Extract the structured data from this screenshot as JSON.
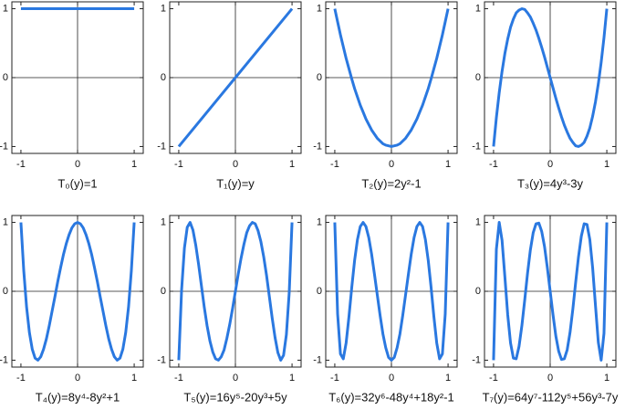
{
  "chart_data": [
    {
      "type": "line",
      "xlabel": "T₀(y)=1",
      "x": [
        -1,
        1
      ],
      "values": [
        1,
        1
      ],
      "color": "#2a78e0",
      "xlim": [
        -1.16,
        1.16
      ],
      "ylim": [
        -1.1,
        1.1
      ],
      "xticks": [
        -1,
        0,
        1
      ],
      "yticks": [
        -1,
        0,
        1
      ],
      "zeroline": true
    },
    {
      "type": "line",
      "xlabel": "T₁(y)=y",
      "x": [
        -1,
        1
      ],
      "values": [
        -1,
        1
      ],
      "color": "#2a78e0",
      "xlim": [
        -1.16,
        1.16
      ],
      "ylim": [
        -1.1,
        1.1
      ],
      "xticks": [
        -1,
        0,
        1
      ],
      "yticks": [
        -1,
        0,
        1
      ],
      "zeroline": true
    },
    {
      "type": "line",
      "xlabel": "T₂(y)=2y²-1",
      "x": [
        -1,
        -0.95,
        -0.9,
        -0.85,
        -0.8,
        -0.75,
        -0.7,
        -0.65,
        -0.6,
        -0.55,
        -0.5,
        -0.45,
        -0.4,
        -0.35,
        -0.3,
        -0.25,
        -0.2,
        -0.15,
        -0.1,
        -0.05,
        0,
        0.05,
        0.1,
        0.15,
        0.2,
        0.25,
        0.3,
        0.35,
        0.4,
        0.45,
        0.5,
        0.55,
        0.6,
        0.65,
        0.7,
        0.75,
        0.8,
        0.85,
        0.9,
        0.95,
        1
      ],
      "values": [
        1,
        0.81,
        0.62,
        0.45,
        0.28,
        0.13,
        -0.02,
        -0.16,
        -0.28,
        -0.4,
        -0.5,
        -0.6,
        -0.68,
        -0.76,
        -0.82,
        -0.88,
        -0.92,
        -0.96,
        -0.98,
        -0.99,
        -1,
        -0.99,
        -0.98,
        -0.96,
        -0.92,
        -0.88,
        -0.82,
        -0.76,
        -0.68,
        -0.6,
        -0.5,
        -0.4,
        -0.28,
        -0.16,
        -0.02,
        0.13,
        0.28,
        0.45,
        0.62,
        0.81,
        1
      ],
      "color": "#2a78e0",
      "xlim": [
        -1.16,
        1.16
      ],
      "ylim": [
        -1.1,
        1.1
      ],
      "xticks": [
        -1,
        0,
        1
      ],
      "yticks": [
        -1,
        0,
        1
      ],
      "zeroline": true
    },
    {
      "type": "line",
      "xlabel": "T₃(y)=4y³-3y",
      "x": [
        -1,
        -0.95,
        -0.9,
        -0.85,
        -0.8,
        -0.75,
        -0.7,
        -0.65,
        -0.6,
        -0.55,
        -0.5,
        -0.45,
        -0.4,
        -0.35,
        -0.3,
        -0.25,
        -0.2,
        -0.15,
        -0.1,
        -0.05,
        0,
        0.05,
        0.1,
        0.15,
        0.2,
        0.25,
        0.3,
        0.35,
        0.4,
        0.45,
        0.5,
        0.55,
        0.6,
        0.65,
        0.7,
        0.75,
        0.8,
        0.85,
        0.9,
        0.95,
        1
      ],
      "values": [
        -1,
        -0.58,
        -0.22,
        0.09,
        0.35,
        0.56,
        0.73,
        0.85,
        0.94,
        0.98,
        1,
        0.99,
        0.94,
        0.88,
        0.79,
        0.69,
        0.57,
        0.44,
        0.3,
        0.15,
        0,
        -0.15,
        -0.3,
        -0.44,
        -0.57,
        -0.69,
        -0.79,
        -0.88,
        -0.94,
        -0.99,
        -1,
        -0.98,
        -0.94,
        -0.85,
        -0.73,
        -0.56,
        -0.35,
        -0.09,
        0.22,
        0.58,
        1
      ],
      "color": "#2a78e0",
      "xlim": [
        -1.16,
        1.16
      ],
      "ylim": [
        -1.1,
        1.1
      ],
      "xticks": [
        -1,
        0,
        1
      ],
      "yticks": [
        -1,
        0,
        1
      ],
      "zeroline": true
    },
    {
      "type": "line",
      "xlabel": "T₄(y)=8y⁴-8y²+1",
      "x": [
        -1,
        -0.95,
        -0.9,
        -0.85,
        -0.8,
        -0.75,
        -0.7,
        -0.65,
        -0.6,
        -0.55,
        -0.5,
        -0.45,
        -0.4,
        -0.35,
        -0.3,
        -0.25,
        -0.2,
        -0.15,
        -0.1,
        -0.05,
        0,
        0.05,
        0.1,
        0.15,
        0.2,
        0.25,
        0.3,
        0.35,
        0.4,
        0.45,
        0.5,
        0.55,
        0.6,
        0.65,
        0.7,
        0.75,
        0.8,
        0.85,
        0.9,
        0.95,
        1
      ],
      "values": [
        1,
        0.3,
        -0.23,
        -0.6,
        -0.84,
        -0.97,
        -1,
        -0.95,
        -0.84,
        -0.69,
        -0.5,
        -0.29,
        -0.08,
        0.14,
        0.34,
        0.53,
        0.69,
        0.82,
        0.92,
        0.98,
        1,
        0.98,
        0.92,
        0.82,
        0.69,
        0.53,
        0.34,
        0.14,
        -0.08,
        -0.29,
        -0.5,
        -0.69,
        -0.84,
        -0.95,
        -1,
        -0.97,
        -0.84,
        -0.6,
        -0.23,
        0.3,
        1
      ],
      "color": "#2a78e0",
      "xlim": [
        -1.16,
        1.16
      ],
      "ylim": [
        -1.1,
        1.1
      ],
      "xticks": [
        -1,
        0,
        1
      ],
      "yticks": [
        -1,
        0,
        1
      ],
      "zeroline": true
    },
    {
      "type": "line",
      "xlabel": "T₅(y)=16y⁵-20y³+5y",
      "x": [
        -1,
        -0.95,
        -0.9,
        -0.85,
        -0.8,
        -0.75,
        -0.7,
        -0.65,
        -0.6,
        -0.55,
        -0.5,
        -0.45,
        -0.4,
        -0.35,
        -0.3,
        -0.25,
        -0.2,
        -0.15,
        -0.1,
        -0.05,
        0,
        0.05,
        0.1,
        0.15,
        0.2,
        0.25,
        0.3,
        0.35,
        0.4,
        0.45,
        0.5,
        0.55,
        0.6,
        0.65,
        0.7,
        0.75,
        0.8,
        0.85,
        0.9,
        0.95,
        1
      ],
      "values": [
        -1,
        0.02,
        0.63,
        0.93,
        1,
        0.89,
        0.67,
        0.39,
        0.08,
        -0.23,
        -0.5,
        -0.72,
        -0.88,
        -0.98,
        -1,
        -0.95,
        -0.85,
        -0.68,
        -0.48,
        -0.25,
        0,
        0.25,
        0.48,
        0.68,
        0.85,
        0.95,
        1,
        0.98,
        0.88,
        0.72,
        0.5,
        0.23,
        -0.08,
        -0.39,
        -0.67,
        -0.89,
        -1,
        -0.93,
        -0.63,
        -0.02,
        1
      ],
      "color": "#2a78e0",
      "xlim": [
        -1.16,
        1.16
      ],
      "ylim": [
        -1.1,
        1.1
      ],
      "xticks": [
        -1,
        0,
        1
      ],
      "yticks": [
        -1,
        0,
        1
      ],
      "zeroline": true
    },
    {
      "type": "line",
      "xlabel": "T₆(y)=32y⁶-48y⁴+18y²-1",
      "x": [
        -1,
        -0.95,
        -0.9,
        -0.85,
        -0.8,
        -0.75,
        -0.7,
        -0.65,
        -0.6,
        -0.55,
        -0.5,
        -0.45,
        -0.4,
        -0.35,
        -0.3,
        -0.25,
        -0.2,
        -0.15,
        -0.1,
        -0.05,
        0,
        0.05,
        0.1,
        0.15,
        0.2,
        0.25,
        0.3,
        0.35,
        0.4,
        0.45,
        0.5,
        0.55,
        0.6,
        0.65,
        0.7,
        0.75,
        0.8,
        0.85,
        0.9,
        0.95,
        1
      ],
      "values": [
        1,
        -0.33,
        -0.91,
        -0.98,
        -0.75,
        -0.37,
        0.06,
        0.45,
        0.75,
        0.94,
        1,
        0.94,
        0.78,
        0.54,
        0.25,
        -0.05,
        -0.35,
        -0.62,
        -0.82,
        -0.96,
        -1,
        -0.96,
        -0.82,
        -0.62,
        -0.35,
        -0.05,
        0.25,
        0.54,
        0.78,
        0.94,
        1,
        0.94,
        0.75,
        0.45,
        0.06,
        -0.37,
        -0.75,
        -0.98,
        -0.91,
        -0.33,
        1
      ],
      "color": "#2a78e0",
      "xlim": [
        -1.16,
        1.16
      ],
      "ylim": [
        -1.1,
        1.1
      ],
      "xticks": [
        -1,
        0,
        1
      ],
      "yticks": [
        -1,
        0,
        1
      ],
      "zeroline": true
    },
    {
      "type": "line",
      "xlabel": "T₇(y)=64y⁷-112y⁵+56y³-7y",
      "x": [
        -1,
        -0.95,
        -0.9,
        -0.85,
        -0.8,
        -0.75,
        -0.7,
        -0.65,
        -0.6,
        -0.55,
        -0.5,
        -0.45,
        -0.4,
        -0.35,
        -0.3,
        -0.25,
        -0.2,
        -0.15,
        -0.1,
        -0.05,
        0,
        0.05,
        0.1,
        0.15,
        0.2,
        0.25,
        0.3,
        0.35,
        0.4,
        0.45,
        0.5,
        0.55,
        0.6,
        0.65,
        0.7,
        0.75,
        0.8,
        0.85,
        0.9,
        0.95,
        1
      ],
      "values": [
        -1,
        0.61,
        1,
        0.74,
        0.21,
        -0.34,
        -0.75,
        -0.97,
        -0.98,
        -0.8,
        -0.5,
        -0.13,
        0.26,
        0.6,
        0.85,
        0.98,
        0.99,
        0.87,
        0.65,
        0.34,
        0,
        -0.34,
        -0.65,
        -0.87,
        -0.99,
        -0.98,
        -0.85,
        -0.6,
        -0.26,
        0.13,
        0.5,
        0.8,
        0.98,
        0.97,
        0.75,
        0.34,
        -0.21,
        -0.74,
        -1,
        -0.61,
        1
      ],
      "color": "#2a78e0",
      "xlim": [
        -1.16,
        1.16
      ],
      "ylim": [
        -1.1,
        1.1
      ],
      "xticks": [
        -1,
        0,
        1
      ],
      "yticks": [
        -1,
        0,
        1
      ],
      "zeroline": true
    }
  ]
}
